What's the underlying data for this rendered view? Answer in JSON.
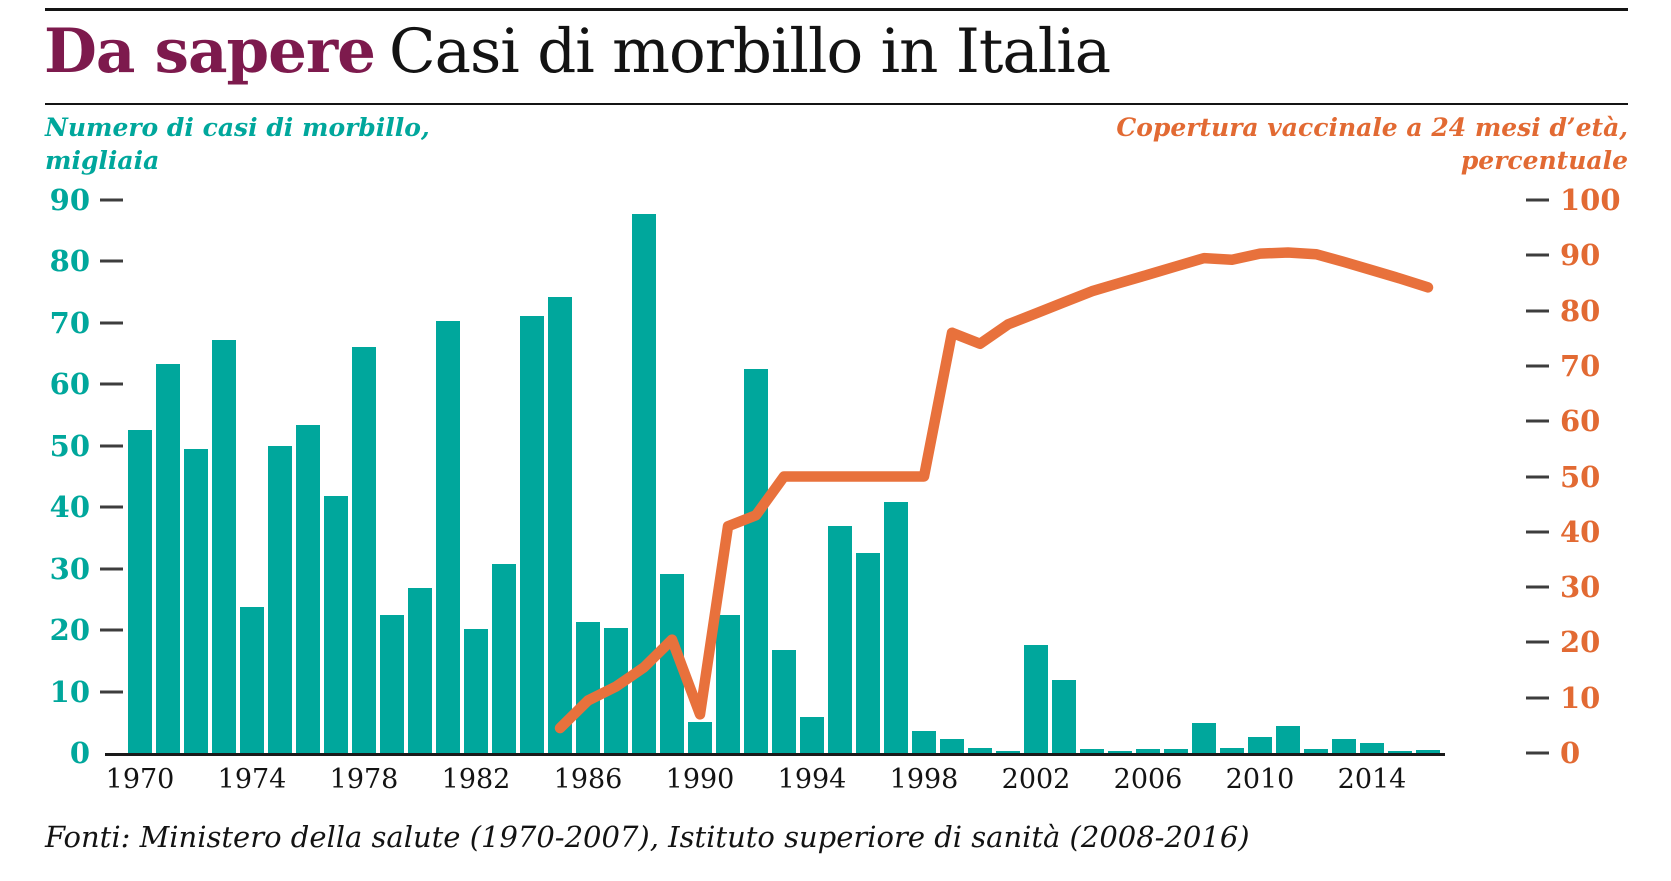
{
  "header": {
    "title_highlight": "Da sapere",
    "title_rest": "Casi di morbillo in Italia"
  },
  "left_axis": {
    "title_line1": "Numero di casi di morbillo,",
    "title_line2": "migliaia",
    "tick_labels": [
      90,
      80,
      70,
      60,
      50,
      40,
      30,
      20,
      10,
      0
    ],
    "color": "#00a79c"
  },
  "right_axis": {
    "title_line1": "Copertura vaccinale a 24 mesi d’età,",
    "title_line2": "percentuale",
    "tick_labels": [
      100,
      90,
      80,
      70,
      60,
      50,
      40,
      30,
      20,
      10,
      0
    ],
    "color": "#e26a33"
  },
  "x_axis": {
    "labels": [
      1970,
      1974,
      1978,
      1982,
      1986,
      1990,
      1994,
      1998,
      2002,
      2006,
      2010,
      2014
    ]
  },
  "footer": {
    "source": "Fonti: Ministero della salute (1970-2007), Istituto superiore di sanità (2008-2016)"
  },
  "colors": {
    "bar_teal": "#00a79c",
    "line_orange": "#e8713c",
    "title_maroon": "#7d1a4d",
    "ink": "#141414",
    "tick_dash": "#3d3d3d"
  },
  "chart_data": {
    "type": "bar",
    "title": "Casi di morbillo in Italia",
    "categories": [
      1970,
      1971,
      1972,
      1973,
      1974,
      1975,
      1976,
      1977,
      1978,
      1979,
      1980,
      1981,
      1982,
      1983,
      1984,
      1985,
      1986,
      1987,
      1988,
      1989,
      1990,
      1991,
      1992,
      1993,
      1994,
      1995,
      1996,
      1997,
      1998,
      1999,
      2000,
      2001,
      2002,
      2003,
      2004,
      2005,
      2006,
      2007,
      2008,
      2009,
      2010,
      2011,
      2012,
      2013,
      2014,
      2015,
      2016
    ],
    "series": [
      {
        "name": "Numero di casi di morbillo, migliaia",
        "type": "bar",
        "axis": "left",
        "color": "#00a79c",
        "values": [
          52.6,
          63.3,
          49.4,
          67.2,
          23.8,
          50.0,
          53.4,
          41.8,
          66.1,
          22.5,
          26.8,
          70.3,
          20.2,
          30.7,
          71.2,
          74.2,
          21.4,
          20.3,
          87.8,
          29.2,
          5.1,
          22.5,
          62.5,
          16.8,
          5.9,
          36.9,
          32.5,
          40.8,
          3.5,
          2.2,
          0.8,
          0.4,
          17.6,
          11.8,
          0.7,
          0.3,
          0.6,
          0.6,
          4.9,
          0.8,
          2.6,
          4.4,
          0.7,
          2.2,
          1.6,
          0.25,
          0.5
        ]
      },
      {
        "name": "Copertura vaccinale a 24 mesi d’età, percentuale",
        "type": "line",
        "axis": "right",
        "color": "#e8713c",
        "start_year": 1985,
        "values": [
          4.5,
          9.5,
          12,
          15.5,
          20.5,
          7,
          41,
          43,
          50,
          50,
          50,
          50,
          50,
          50,
          76,
          74,
          77.5,
          79.5,
          81.5,
          83.5,
          85,
          86.5,
          88,
          89.5,
          89.2,
          90.3,
          90.5,
          90.2,
          88.8,
          87.3,
          85.8,
          84.2
        ]
      }
    ],
    "left_ylim": [
      0,
      90
    ],
    "right_ylim": [
      0,
      100
    ],
    "grid": false,
    "legend_position": "axis-titles"
  }
}
